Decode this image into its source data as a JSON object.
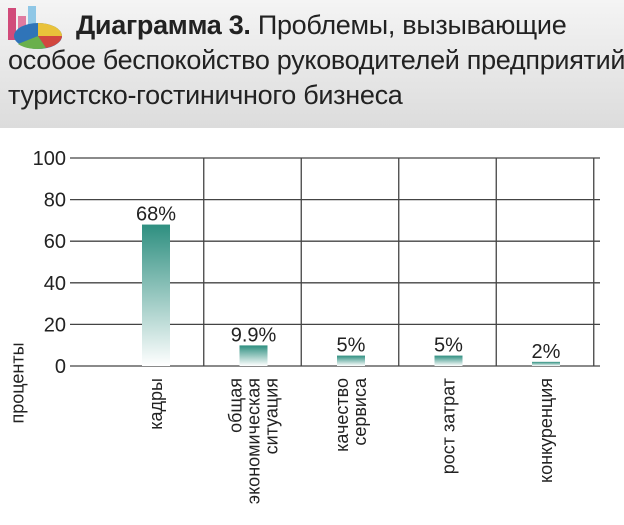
{
  "header": {
    "logo_icon": "pie-chart-icon",
    "title_strong": "Диаграмма 3.",
    "title_line1_rest": "Проблемы, вызывающие",
    "title_line2": "особое беспокойство руководителей предприятий",
    "title_line3": "туристско-гостиничного бизнеса"
  },
  "colors": {
    "bar_dark": "#2e8f80",
    "bar_light": "#ffffff",
    "grid": "#444444",
    "header_bg": "#e2e2e2"
  },
  "chart_data": {
    "type": "bar",
    "ylabel": "проценты",
    "ylim": [
      0,
      100
    ],
    "yticks": [
      "0",
      "20",
      "40",
      "60",
      "80",
      "100"
    ],
    "grid": true,
    "categories": [
      [
        "кадры"
      ],
      [
        "общая",
        "экономическая",
        "ситуация"
      ],
      [
        "качество",
        "сервиса"
      ],
      [
        "рост затрат"
      ],
      [
        "конкуренция"
      ]
    ],
    "values": [
      68,
      9.9,
      5,
      5,
      2
    ],
    "data_labels": [
      "68%",
      "9.9%",
      "5%",
      "5%",
      "2%"
    ]
  }
}
